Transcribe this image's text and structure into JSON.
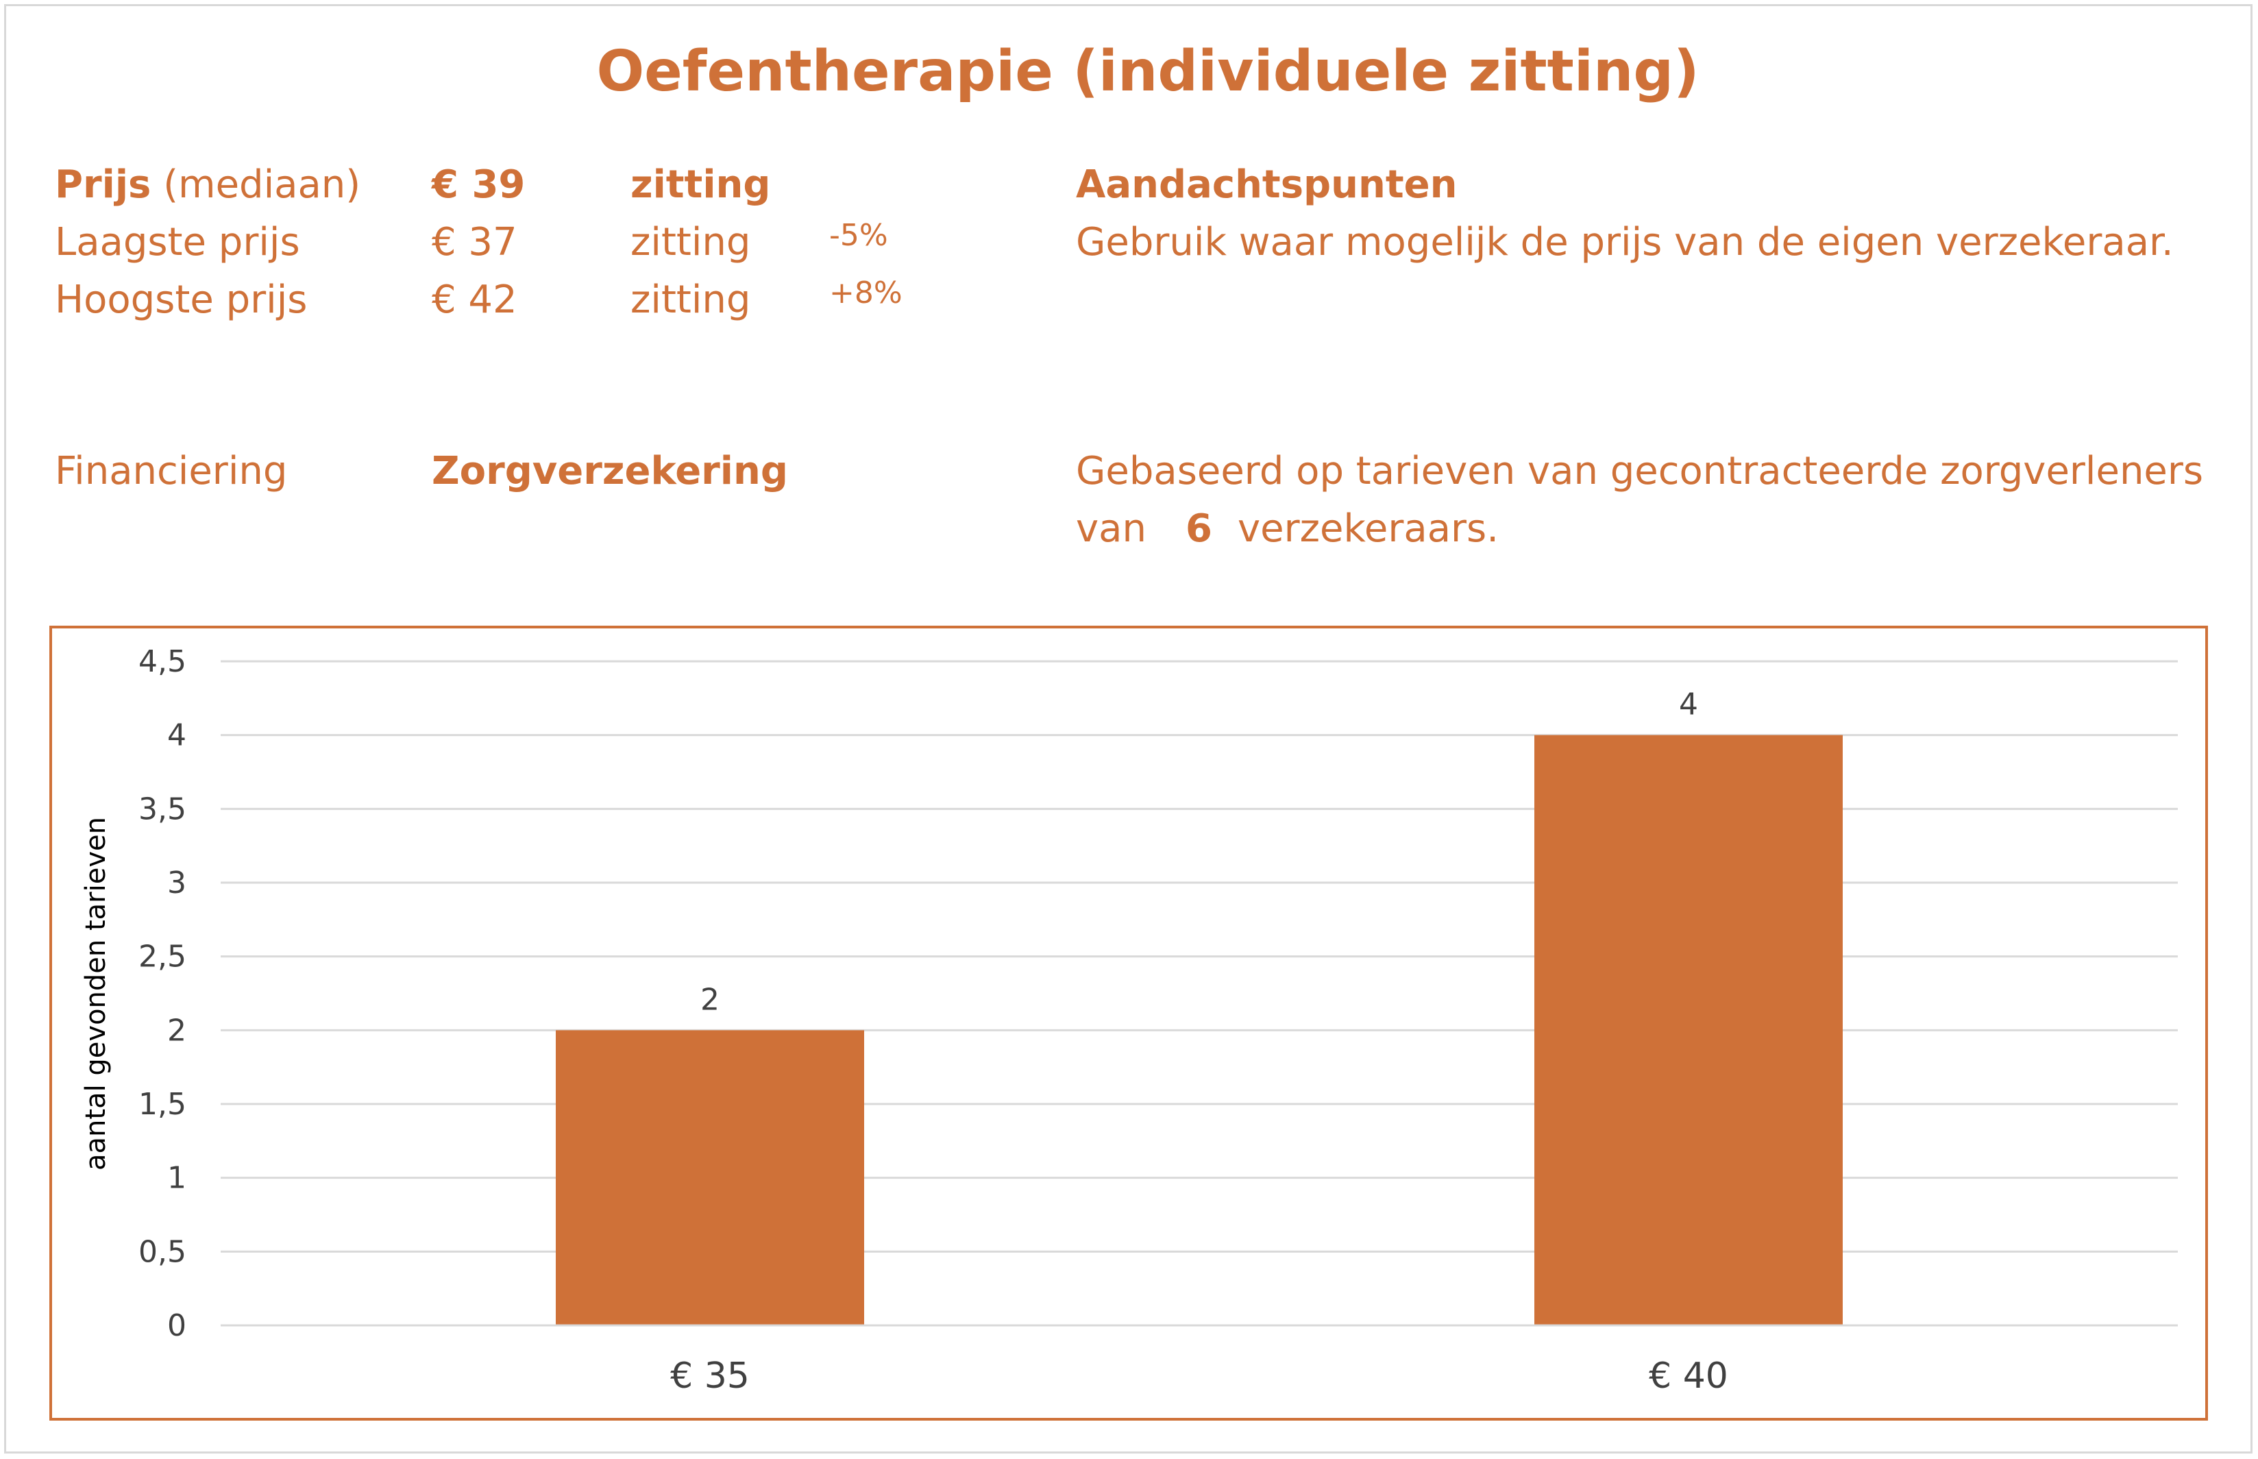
{
  "header": {
    "title": "Oefentherapie (individuele zitting)"
  },
  "prices": {
    "median": {
      "label_bold": "Prijs",
      "label_rest": "(mediaan)",
      "amount": "€ 39",
      "unit": "zitting"
    },
    "lowest": {
      "label": "Laagste prijs",
      "amount": "€ 37",
      "unit": "zitting",
      "diff": "-5%"
    },
    "highest": {
      "label": "Hoogste prijs",
      "amount": "€ 42",
      "unit": "zitting",
      "diff": "+8%"
    }
  },
  "notes": {
    "heading": "Aandachtspunten",
    "text": "Gebruik waar mogelijk de prijs van de eigen verzekeraar."
  },
  "financing": {
    "label": "Financiering",
    "value": "Zorgverzekering",
    "basis_line1": "Gebaseerd op tarieven van gecontracteerde zorgverleners",
    "basis_prefix": "van",
    "insurer_count": "6",
    "basis_suffix": "verzekeraars."
  },
  "colors": {
    "accent": "#cf7138",
    "bar": "#cf7138",
    "grid": "#d9d9d9",
    "axis_text": "#404040"
  },
  "chart_data": {
    "type": "bar",
    "categories": [
      "€ 35",
      "€ 40"
    ],
    "values": [
      2,
      4
    ],
    "data_labels": [
      "2",
      "4"
    ],
    "title": "",
    "xlabel": "",
    "ylabel": "aantal gevonden tarieven",
    "ylim": [
      0,
      4.5
    ],
    "y_ticks": [
      0,
      0.5,
      1,
      1.5,
      2,
      2.5,
      3,
      3.5,
      4,
      4.5
    ],
    "y_tick_labels": [
      "0",
      "0,5",
      "1",
      "1,5",
      "2",
      "2,5",
      "3",
      "3,5",
      "4",
      "4,5"
    ],
    "grid": true,
    "legend": "none"
  }
}
